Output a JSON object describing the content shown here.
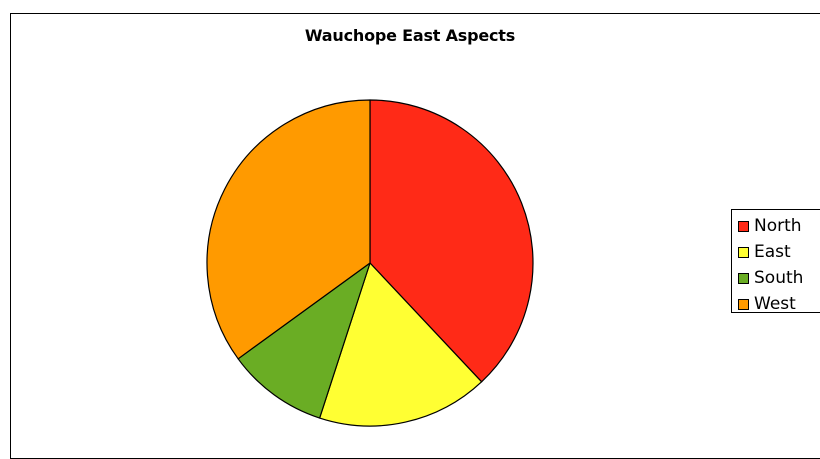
{
  "chart_data": {
    "type": "pie",
    "title": "Wauchope East Aspects",
    "categories": [
      "North",
      "East",
      "South",
      "West"
    ],
    "values": [
      38,
      17,
      10,
      35
    ],
    "colors": [
      "#ff2a17",
      "#ffff33",
      "#6aad24",
      "#ff9a00"
    ],
    "legend_position": "right"
  }
}
